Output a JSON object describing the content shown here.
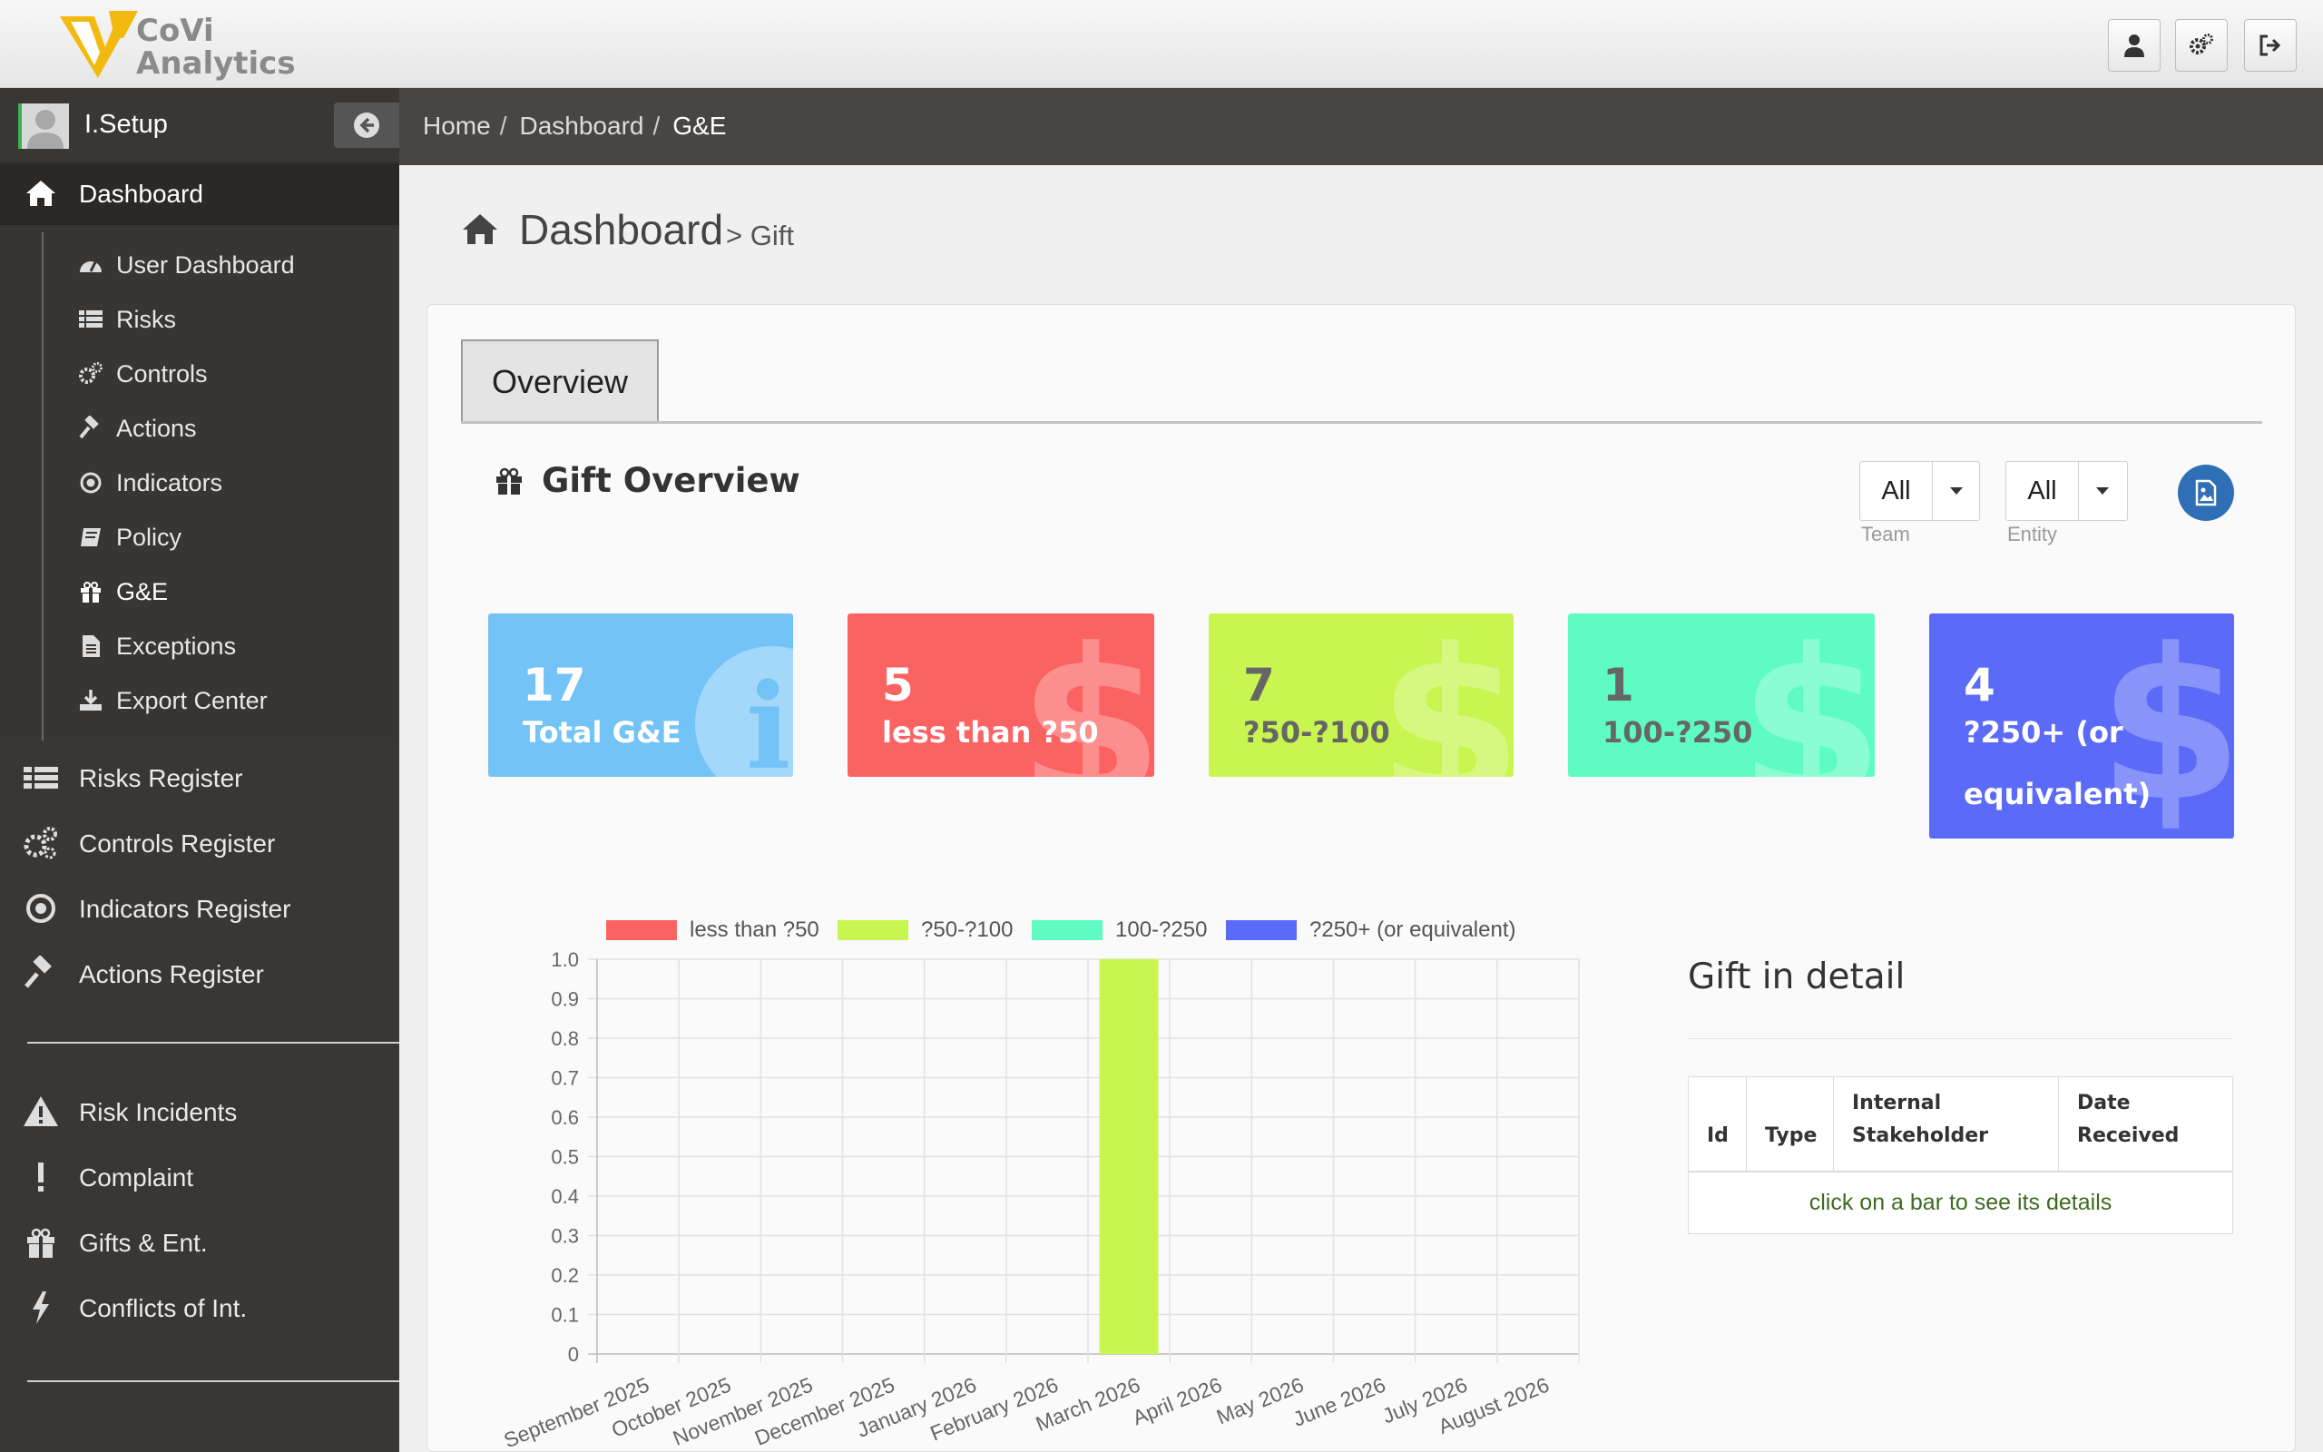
{
  "app": {
    "logo_line1": "CoVi",
    "logo_line2": "Analytics"
  },
  "header_buttons": [
    {
      "icon": "user-icon"
    },
    {
      "icon": "gears-icon"
    },
    {
      "icon": "sign-out-icon"
    }
  ],
  "sidebar": {
    "user_name": "I.Setup",
    "main_item": "Dashboard",
    "sub_items": [
      {
        "label": "User Dashboard",
        "icon": "dashboard-gauge-icon"
      },
      {
        "label": "Risks",
        "icon": "list-icon"
      },
      {
        "label": "Controls",
        "icon": "gears-icon"
      },
      {
        "label": "Actions",
        "icon": "gavel-icon"
      },
      {
        "label": "Indicators",
        "icon": "dot-circle-icon"
      },
      {
        "label": "Policy",
        "icon": "book-icon"
      },
      {
        "label": "G&E",
        "icon": "gift-icon"
      },
      {
        "label": "Exceptions",
        "icon": "file-icon"
      },
      {
        "label": "Export Center",
        "icon": "download-icon"
      }
    ],
    "registers": [
      {
        "label": "Risks Register",
        "icon": "list-icon"
      },
      {
        "label": "Controls Register",
        "icon": "gears-icon"
      },
      {
        "label": "Indicators Register",
        "icon": "dot-circle-icon"
      },
      {
        "label": "Actions Register",
        "icon": "gavel-icon"
      }
    ],
    "incidents": [
      {
        "label": "Risk Incidents",
        "icon": "warning-icon"
      },
      {
        "label": "Complaint",
        "icon": "exclamation-icon"
      },
      {
        "label": "Gifts & Ent.",
        "icon": "gift-icon"
      },
      {
        "label": "Conflicts of Int.",
        "icon": "bolt-icon"
      }
    ]
  },
  "breadcrumb": {
    "home": "Home",
    "sep": "/",
    "dashboard": "Dashboard",
    "current": "G&E"
  },
  "page": {
    "title": "Dashboard",
    "subtitle": "> Gift"
  },
  "tabs": {
    "overview": "Overview"
  },
  "gift_overview": {
    "title": "Gift Overview",
    "team_select": {
      "value": "All",
      "label": "Team"
    },
    "entity_select": {
      "value": "All",
      "label": "Entity"
    }
  },
  "cards": [
    {
      "value": "17",
      "label": "Total G&E",
      "color": "#74c3f7",
      "icon": "info-icon"
    },
    {
      "value": "5",
      "label": "less than ?50",
      "color": "#fb6363",
      "icon": "dollar-icon"
    },
    {
      "value": "7",
      "label": "?50-?100",
      "color": "#c8f550",
      "icon": "dollar-icon"
    },
    {
      "value": "1",
      "label": "100-?250",
      "color": "#5efcc3",
      "icon": "dollar-icon"
    },
    {
      "value": "4",
      "label": "?250+ (or equivalent)",
      "color": "#5b6bf7",
      "icon": "dollar-icon"
    }
  ],
  "chart_data": {
    "type": "bar",
    "stacked": true,
    "categories": [
      "September 2025",
      "October 2025",
      "November 2025",
      "December 2025",
      "January 2026",
      "February 2026",
      "March 2026",
      "April 2026",
      "May 2026",
      "June 2026",
      "July 2026",
      "August 2026"
    ],
    "series": [
      {
        "name": "less than ?50",
        "color": "#fb6363",
        "values": [
          0,
          0,
          0,
          0,
          0,
          0,
          0,
          0,
          0,
          0,
          0,
          0
        ]
      },
      {
        "name": "?50-?100",
        "color": "#c8f550",
        "values": [
          0,
          0,
          0,
          0,
          0,
          0,
          1,
          0,
          0,
          0,
          0,
          0
        ]
      },
      {
        "name": "100-?250",
        "color": "#5efcc3",
        "values": [
          0,
          0,
          0,
          0,
          0,
          0,
          0,
          0,
          0,
          0,
          0,
          0
        ]
      },
      {
        "name": "?250+ (or equivalent)",
        "color": "#5b6bf7",
        "values": [
          0,
          0,
          0,
          0,
          0,
          0,
          0,
          0,
          0,
          0,
          0,
          0
        ]
      }
    ],
    "ylim": [
      0,
      1.0
    ],
    "yticks": [
      "0",
      "0.1",
      "0.2",
      "0.3",
      "0.4",
      "0.5",
      "0.6",
      "0.7",
      "0.8",
      "0.9",
      "1.0"
    ],
    "legend_position": "top",
    "grid": true
  },
  "detail": {
    "title": "Gift in detail",
    "columns": [
      "Id",
      "Type",
      "Internal Stakeholder",
      "Date Received"
    ],
    "empty_message": "click on a bar to see its details"
  }
}
